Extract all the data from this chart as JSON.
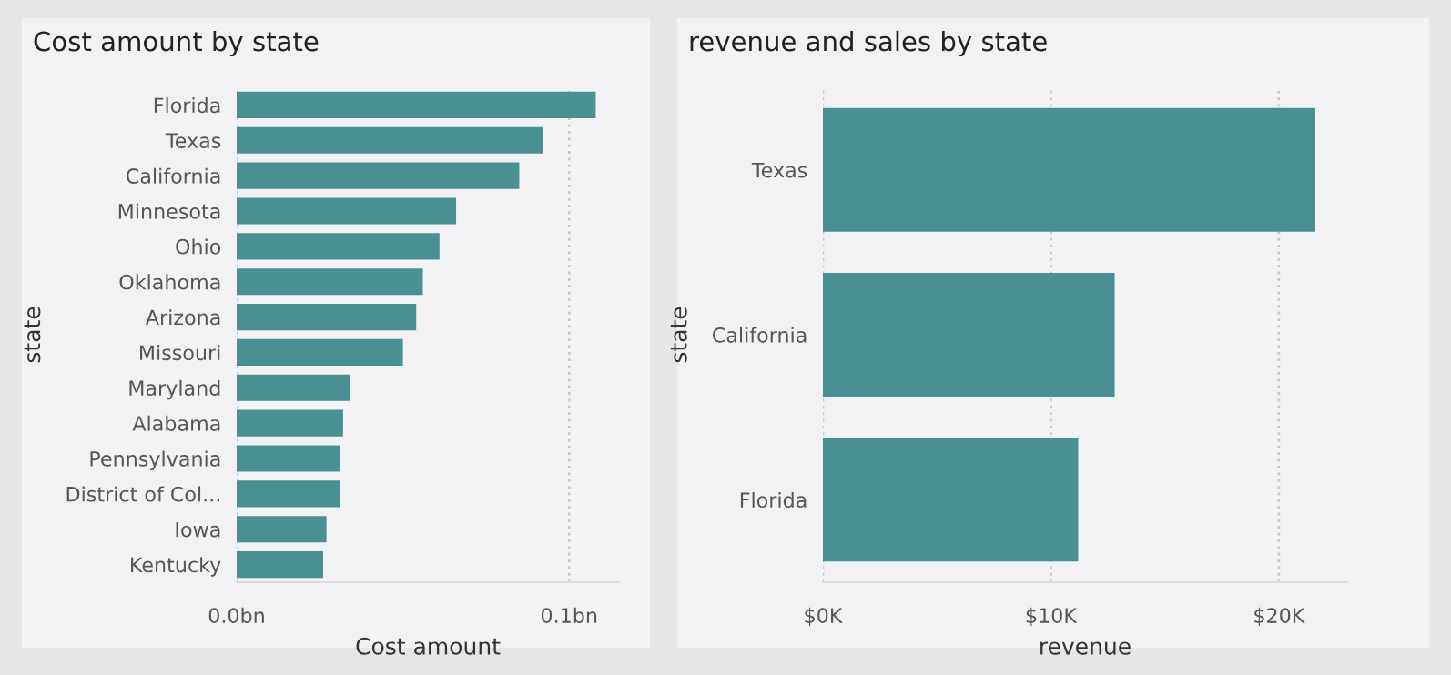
{
  "chart_data": [
    {
      "type": "bar",
      "orientation": "horizontal",
      "title": "Cost amount by state",
      "xlabel": "Cost amount",
      "ylabel": "state",
      "categories": [
        "Florida",
        "Texas",
        "California",
        "Minnesota",
        "Ohio",
        "Oklahoma",
        "Arizona",
        "Missouri",
        "Maryland",
        "Alabama",
        "Pennsylvania",
        "District of Col...",
        "Iowa",
        "Kentucky"
      ],
      "values": [
        0.108,
        0.092,
        0.085,
        0.066,
        0.061,
        0.056,
        0.054,
        0.05,
        0.034,
        0.032,
        0.031,
        0.031,
        0.027,
        0.026
      ],
      "color": "#4a8f92",
      "xlim": [
        0,
        0.115
      ],
      "xticks": [
        {
          "value": 0,
          "label": "0.0bn"
        },
        {
          "value": 0.1,
          "label": "0.1bn"
        }
      ],
      "grid": "x"
    },
    {
      "type": "bar",
      "orientation": "horizontal",
      "title": "revenue and sales by state",
      "xlabel": "revenue",
      "ylabel": "state",
      "categories": [
        "Texas",
        "California",
        "Florida"
      ],
      "values": [
        21.6,
        12.8,
        11.2
      ],
      "color": "#4a8f92",
      "xlim": [
        0,
        23
      ],
      "xticks": [
        {
          "value": 0,
          "label": "$0K"
        },
        {
          "value": 10,
          "label": "$10K"
        },
        {
          "value": 20,
          "label": "$20K"
        }
      ],
      "grid": "x"
    }
  ]
}
